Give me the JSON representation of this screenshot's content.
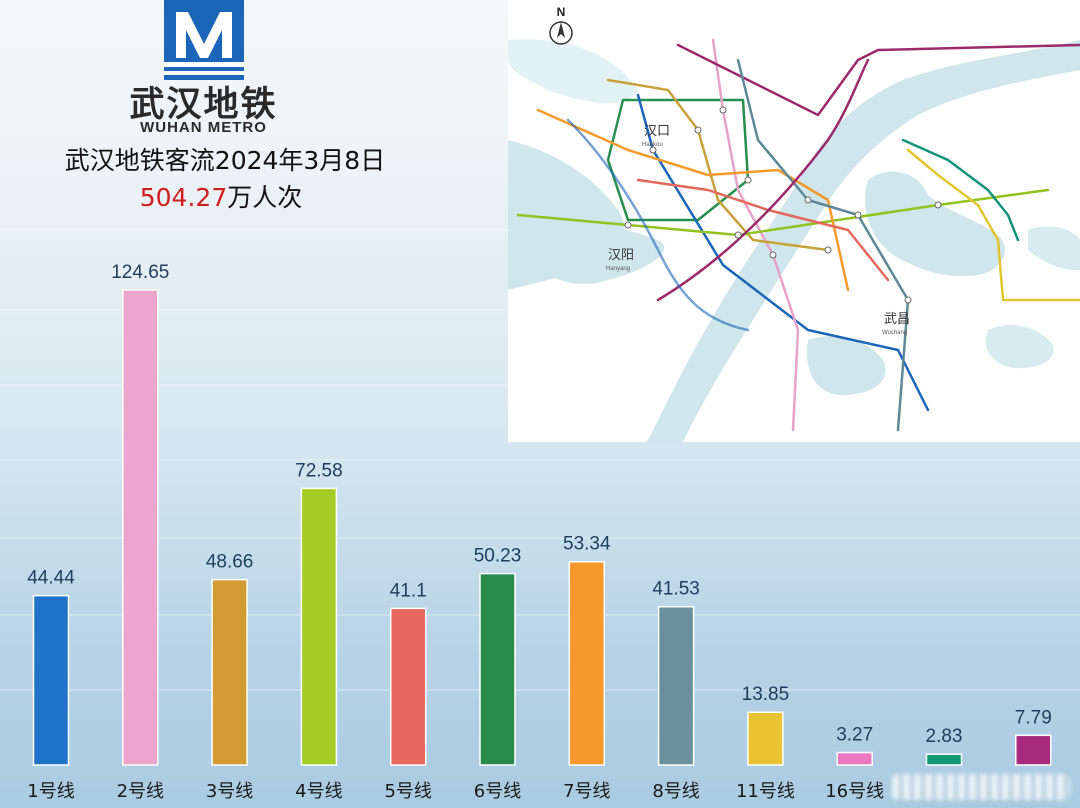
{
  "logo": {
    "name_cn": "武汉地铁",
    "name_en": "WUHAN METRO",
    "primary_color": "#1b66b8"
  },
  "header": {
    "title": "武汉地铁客流2024年3月8日",
    "total_value": "504.27",
    "total_unit": "万人次"
  },
  "map": {
    "north_label": "N",
    "districts": [
      {
        "name": "汉口",
        "pinyin": "Hankou"
      },
      {
        "name": "汉阳",
        "pinyin": "Hanyang"
      },
      {
        "name": "武昌",
        "pinyin": "Wuchang"
      }
    ],
    "line_colors": [
      "#1b66b8",
      "#e7a2c9",
      "#c9a13a",
      "#8fc31f",
      "#e4685a",
      "#278f4e",
      "#f39a2b",
      "#5d8897",
      "#e3c52f",
      "#9b2a6b",
      "#15927a"
    ]
  },
  "chart_data": {
    "type": "bar",
    "categories": [
      "1号线",
      "2号线",
      "3号线",
      "4号线",
      "5号线",
      "6号线",
      "7号线",
      "8号线",
      "11号线",
      "16号线",
      "",
      ""
    ],
    "values": [
      44.44,
      124.65,
      48.66,
      72.58,
      41.1,
      50.23,
      53.34,
      41.53,
      13.85,
      3.27,
      2.83,
      7.79
    ],
    "labels": [
      "44.44",
      "124.65",
      "48.66",
      "72.58",
      "41.1",
      "50.23",
      "53.34",
      "41.53",
      "13.85",
      "3.27",
      "2.83",
      "7.79"
    ],
    "colors": [
      "#1f74c9",
      "#eca6cd",
      "#d29b34",
      "#a5cb25",
      "#e7685c",
      "#2a8c4b",
      "#f6992c",
      "#6b8f9b",
      "#e9c331",
      "#ea79c0",
      "#139a74",
      "#a82a7d"
    ],
    "ylim": [
      0,
      124.65
    ],
    "grid": true,
    "xlabel": "",
    "ylabel": ""
  }
}
